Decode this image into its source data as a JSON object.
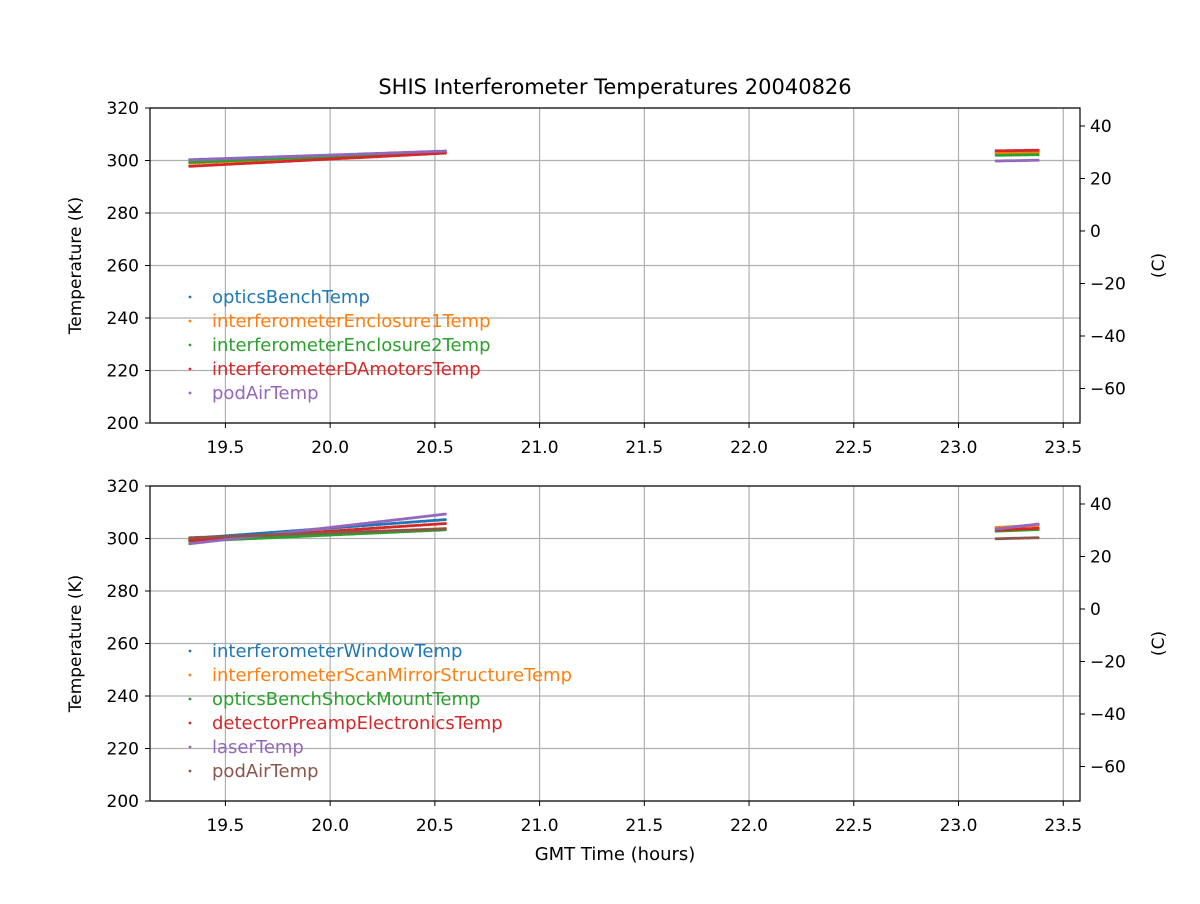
{
  "figure_title": "SHIS Interferometer Temperatures 20040826",
  "chart_data": [
    {
      "type": "scatter",
      "title": "SHIS Interferometer Temperatures 20040826",
      "xlabel": "",
      "ylabel": "Temperature (K)",
      "ylabel_right": "(C)",
      "xlim": [
        19.14,
        23.58
      ],
      "ylim": [
        200,
        320
      ],
      "ylim_right": [
        -73.15,
        46.85
      ],
      "xticks": [
        19.5,
        20.0,
        20.5,
        21.0,
        21.5,
        22.0,
        22.5,
        23.0,
        23.5
      ],
      "xtick_labels": [
        "19.5",
        "20.0",
        "20.5",
        "21.0",
        "21.5",
        "22.0",
        "22.5",
        "23.0",
        "23.5"
      ],
      "yticks": [
        200,
        220,
        240,
        260,
        280,
        300,
        320
      ],
      "ytick_labels": [
        "200",
        "220",
        "240",
        "260",
        "280",
        "300",
        "320"
      ],
      "yticks_right": [
        -60,
        -40,
        -20,
        0,
        20,
        40
      ],
      "ytick_labels_right": [
        "−60",
        "−40",
        "−20",
        "0",
        "20",
        "40"
      ],
      "grid": true,
      "legend_position": "lower-left",
      "series": [
        {
          "name": "opticsBenchTemp",
          "color": "#1f77b4",
          "segments": [
            {
              "x0": 19.33,
              "x1": 20.55,
              "y0": 300.3,
              "y1": 303.4
            },
            {
              "x0": 23.18,
              "x1": 23.38,
              "y0": 303.2,
              "y1": 303.4
            }
          ]
        },
        {
          "name": "interferometerEnclosure1Temp",
          "color": "#ff7f0e",
          "segments": [
            {
              "x0": 19.33,
              "x1": 20.55,
              "y0": 299.0,
              "y1": 303.1
            },
            {
              "x0": 23.18,
              "x1": 23.38,
              "y0": 302.8,
              "y1": 303.0
            }
          ]
        },
        {
          "name": "interferometerEnclosure2Temp",
          "color": "#2ca02c",
          "segments": [
            {
              "x0": 19.33,
              "x1": 20.55,
              "y0": 299.3,
              "y1": 303.3
            },
            {
              "x0": 23.18,
              "x1": 23.38,
              "y0": 302.0,
              "y1": 302.2
            }
          ]
        },
        {
          "name": "interferometerDAmotorsTemp",
          "color": "#d62728",
          "segments": [
            {
              "x0": 19.33,
              "x1": 20.55,
              "y0": 297.8,
              "y1": 302.8
            },
            {
              "x0": 23.18,
              "x1": 23.38,
              "y0": 303.7,
              "y1": 303.9
            }
          ]
        },
        {
          "name": "podAirTemp",
          "color": "#9467bd",
          "segments": [
            {
              "x0": 19.33,
              "x1": 20.55,
              "y0": 300.2,
              "y1": 303.6
            },
            {
              "x0": 23.18,
              "x1": 23.38,
              "y0": 299.8,
              "y1": 300.1
            }
          ]
        }
      ]
    },
    {
      "type": "scatter",
      "title": "",
      "xlabel": "GMT Time (hours)",
      "ylabel": "Temperature (K)",
      "ylabel_right": "(C)",
      "xlim": [
        19.14,
        23.58
      ],
      "ylim": [
        200,
        320
      ],
      "ylim_right": [
        -73.15,
        46.85
      ],
      "xticks": [
        19.5,
        20.0,
        20.5,
        21.0,
        21.5,
        22.0,
        22.5,
        23.0,
        23.5
      ],
      "xtick_labels": [
        "19.5",
        "20.0",
        "20.5",
        "21.0",
        "21.5",
        "22.0",
        "22.5",
        "23.0",
        "23.5"
      ],
      "yticks": [
        200,
        220,
        240,
        260,
        280,
        300,
        320
      ],
      "ytick_labels": [
        "200",
        "220",
        "240",
        "260",
        "280",
        "300",
        "320"
      ],
      "yticks_right": [
        -60,
        -40,
        -20,
        0,
        20,
        40
      ],
      "ytick_labels_right": [
        "−60",
        "−40",
        "−20",
        "0",
        "20",
        "40"
      ],
      "grid": true,
      "legend_position": "lower-left",
      "series": [
        {
          "name": "interferometerWindowTemp",
          "color": "#1f77b4",
          "segments": [
            {
              "x0": 19.33,
              "x1": 20.55,
              "y0": 300.0,
              "y1": 307.2
            },
            {
              "x0": 23.18,
              "x1": 23.38,
              "y0": 304.0,
              "y1": 305.2
            }
          ]
        },
        {
          "name": "interferometerScanMirrorStructureTemp",
          "color": "#ff7f0e",
          "segments": [
            {
              "x0": 19.33,
              "x1": 20.55,
              "y0": 299.6,
              "y1": 303.8
            },
            {
              "x0": 23.18,
              "x1": 23.38,
              "y0": 304.2,
              "y1": 305.0
            }
          ]
        },
        {
          "name": "opticsBenchShockMountTemp",
          "color": "#2ca02c",
          "segments": [
            {
              "x0": 19.33,
              "x1": 20.55,
              "y0": 298.9,
              "y1": 303.3
            },
            {
              "x0": 23.18,
              "x1": 23.38,
              "y0": 302.8,
              "y1": 303.4
            }
          ]
        },
        {
          "name": "detectorPreampElectronicsTemp",
          "color": "#d62728",
          "segments": [
            {
              "x0": 19.33,
              "x1": 20.55,
              "y0": 299.3,
              "y1": 305.7
            },
            {
              "x0": 23.18,
              "x1": 23.38,
              "y0": 303.2,
              "y1": 303.9
            }
          ]
        },
        {
          "name": "laserTemp",
          "color": "#9467bd",
          "segments": [
            {
              "x0": 19.33,
              "x1": 20.55,
              "y0": 298.0,
              "y1": 309.3
            },
            {
              "x0": 23.18,
              "x1": 23.38,
              "y0": 303.6,
              "y1": 305.5
            }
          ]
        },
        {
          "name": "podAirTemp",
          "color": "#8c564b",
          "segments": [
            {
              "x0": 19.33,
              "x1": 20.55,
              "y0": 300.3,
              "y1": 303.7
            },
            {
              "x0": 23.18,
              "x1": 23.38,
              "y0": 299.9,
              "y1": 300.3
            }
          ]
        }
      ]
    }
  ]
}
